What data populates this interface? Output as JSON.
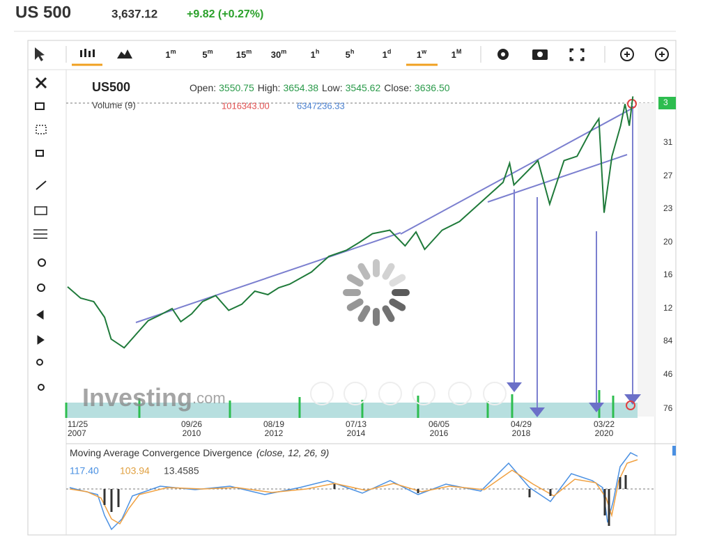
{
  "header": {
    "symbol": "US 500",
    "price": "3,637.12",
    "change": "+9.82 (+0.27%)"
  },
  "toolbar": {
    "intervals": [
      {
        "n": "1",
        "u": "m"
      },
      {
        "n": "5",
        "u": "m"
      },
      {
        "n": "15",
        "u": "m"
      },
      {
        "n": "30",
        "u": "m"
      },
      {
        "n": "1",
        "u": "h"
      },
      {
        "n": "5",
        "u": "h"
      },
      {
        "n": "1",
        "u": "d"
      },
      {
        "n": "1",
        "u": "w"
      },
      {
        "n": "1",
        "u": "M"
      }
    ]
  },
  "chart": {
    "legend": {
      "symbol": "US500",
      "items": [
        {
          "label": "Open:",
          "value": "3550.75"
        },
        {
          "label": "High:",
          "value": "3654.38"
        },
        {
          "label": "Low:",
          "value": "3545.62"
        },
        {
          "label": "Close:",
          "value": "3636.50"
        }
      ]
    },
    "volume": {
      "label": "Volume (9)",
      "value1": "1016343.00",
      "value2": "6347236.33"
    },
    "y_axis_labels": [
      "3",
      "31",
      "27",
      "23",
      "20",
      "16",
      "12",
      "84",
      "46",
      "76"
    ],
    "x_axis_labels": [
      [
        "11/25",
        "2007"
      ],
      [
        "09/26",
        "2010"
      ],
      [
        "08/19",
        "2012"
      ],
      [
        "07/13",
        "2014"
      ],
      [
        "06/05",
        "2016"
      ],
      [
        "04/29",
        "2018"
      ],
      [
        "03/22",
        "2020"
      ]
    ],
    "watermark": {
      "brand": "Investing",
      "suffix": ".com"
    },
    "price": {
      "x": [
        2007.9,
        2008.2,
        2008.5,
        2008.75,
        2008.9,
        2009.2,
        2009.5,
        2009.75,
        2010.0,
        2010.3,
        2010.5,
        2010.75,
        2011.0,
        2011.3,
        2011.6,
        2011.9,
        2012.2,
        2012.5,
        2012.75,
        2013.0,
        2013.5,
        2013.9,
        2014.3,
        2014.6,
        2014.9,
        2015.3,
        2015.65,
        2015.9,
        2016.1,
        2016.5,
        2016.9,
        2017.3,
        2017.9,
        2018.05,
        2018.15,
        2018.7,
        2018.97,
        2019.3,
        2019.6,
        2019.9,
        2020.1,
        2020.22,
        2020.4,
        2020.6,
        2020.7,
        2020.8,
        2020.88
      ],
      "values": [
        1450,
        1320,
        1280,
        1100,
        850,
        750,
        920,
        1060,
        1120,
        1200,
        1050,
        1140,
        1280,
        1350,
        1180,
        1250,
        1400,
        1360,
        1440,
        1480,
        1620,
        1800,
        1870,
        1960,
        2060,
        2100,
        1920,
        2080,
        1880,
        2100,
        2200,
        2380,
        2650,
        2870,
        2620,
        2900,
        2400,
        2900,
        2950,
        3230,
        3380,
        2300,
        2950,
        3300,
        3550,
        3300,
        3637
      ]
    }
  },
  "macd": {
    "title": "Moving Average Convergence Divergence",
    "params": "(close, 12, 26, 9)",
    "macd": "117.40",
    "signal": "103.94",
    "hist": "13.4585"
  }
}
